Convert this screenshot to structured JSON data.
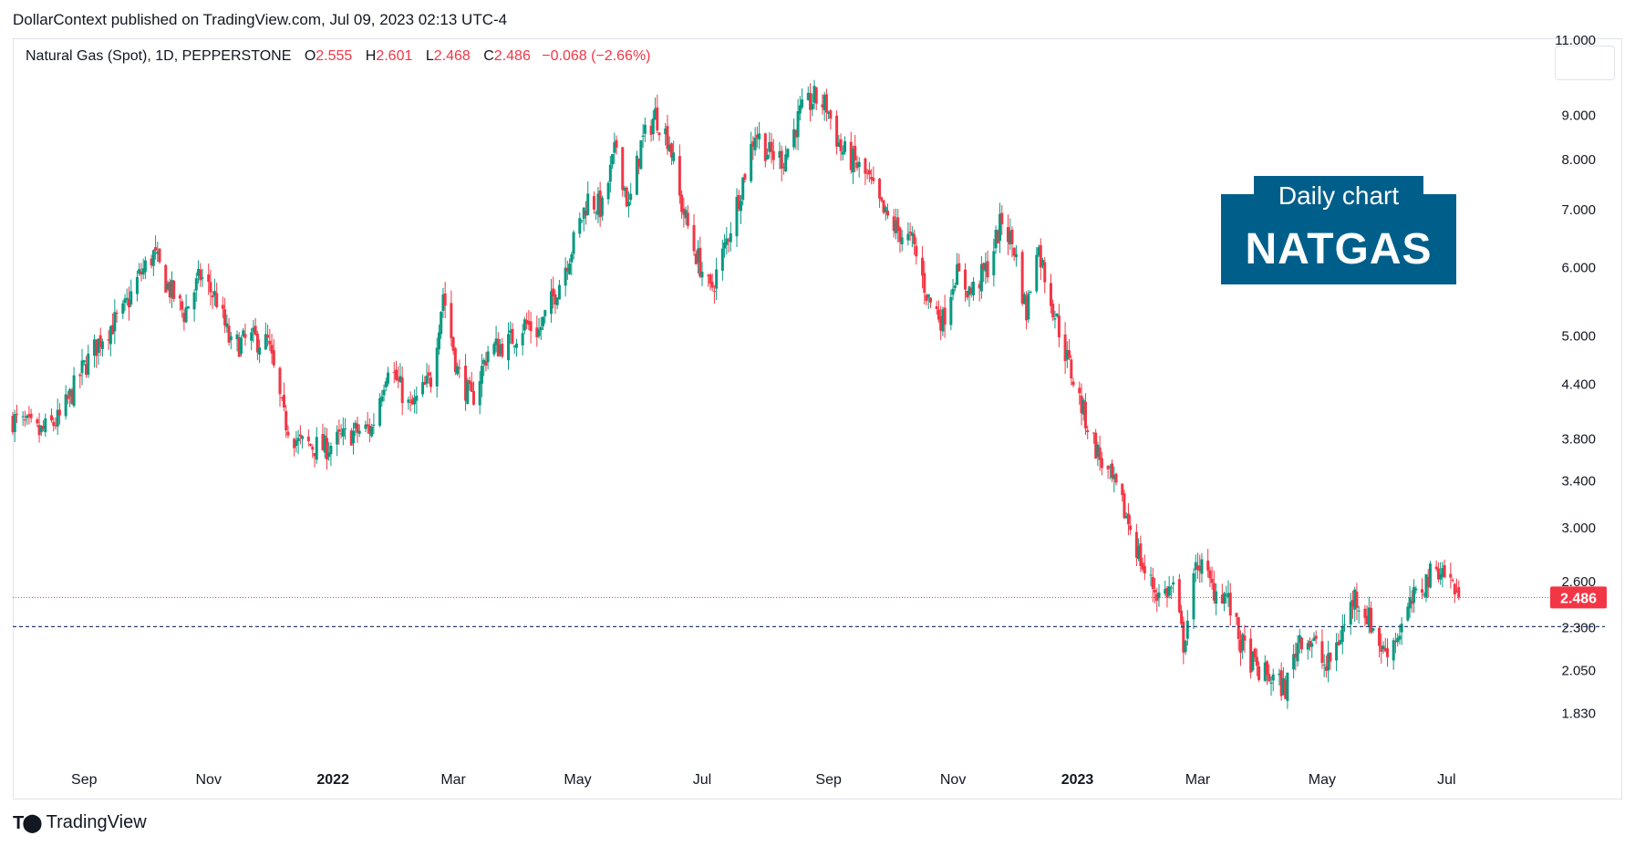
{
  "header": {
    "publisher_line": "DollarContext published on TradingView.com, Jul 09, 2023 02:13 UTC-4"
  },
  "legend": {
    "symbol": "Natural Gas (Spot), 1D, PEPPERSTONE",
    "open_label": "O",
    "open_value": "2.555",
    "high_label": "H",
    "high_value": "2.601",
    "low_label": "L",
    "low_value": "2.468",
    "close_label": "C",
    "close_value": "2.486",
    "change": "−0.068 (−2.66%)"
  },
  "badge": {
    "subtitle": "Daily chart",
    "title": "NATGAS"
  },
  "footer": {
    "brand": "TradingView",
    "logo_icon": "tradingview-logo-icon"
  },
  "colors": {
    "up": "#089981",
    "down": "#f23645",
    "badge": "#005f8a",
    "support_line": "#2a3f6e",
    "price_line": "#f23645"
  },
  "chart_data": {
    "type": "candlestick",
    "scale": "log",
    "ylim": [
      1.72,
      11.0
    ],
    "y_ticks": [
      "11.000",
      "9.000",
      "8.000",
      "7.000",
      "6.000",
      "5.000",
      "4.400",
      "3.800",
      "3.400",
      "3.000",
      "2.600",
      "2.300",
      "2.050",
      "1.830"
    ],
    "x_ticks": [
      {
        "label": "Sep",
        "date": "2021-09-01",
        "bold": false
      },
      {
        "label": "Nov",
        "date": "2021-11-01",
        "bold": false
      },
      {
        "label": "2022",
        "date": "2022-01-01",
        "bold": true
      },
      {
        "label": "Mar",
        "date": "2022-03-01",
        "bold": false
      },
      {
        "label": "May",
        "date": "2022-05-01",
        "bold": false
      },
      {
        "label": "Jul",
        "date": "2022-07-01",
        "bold": false
      },
      {
        "label": "Sep",
        "date": "2022-09-01",
        "bold": false
      },
      {
        "label": "Nov",
        "date": "2022-11-01",
        "bold": false
      },
      {
        "label": "2023",
        "date": "2023-01-01",
        "bold": true
      },
      {
        "label": "Mar",
        "date": "2023-03-01",
        "bold": false
      },
      {
        "label": "May",
        "date": "2023-05-01",
        "bold": false
      },
      {
        "label": "Jul",
        "date": "2023-07-01",
        "bold": false
      }
    ],
    "x_range": [
      "2021-07-28",
      "2023-08-15"
    ],
    "last_price": 2.486,
    "last_price_label": "2.486",
    "support_level": 2.3,
    "close_path": [
      [
        "2021-07-28",
        4.0
      ],
      [
        "2021-08-10",
        3.85
      ],
      [
        "2021-08-20",
        4.0
      ],
      [
        "2021-08-31",
        4.55
      ],
      [
        "2021-09-10",
        5.0
      ],
      [
        "2021-09-20",
        5.3
      ],
      [
        "2021-09-28",
        5.85
      ],
      [
        "2021-10-05",
        6.2
      ],
      [
        "2021-10-12",
        5.7
      ],
      [
        "2021-10-20",
        5.3
      ],
      [
        "2021-10-28",
        5.85
      ],
      [
        "2021-11-05",
        5.5
      ],
      [
        "2021-11-12",
        4.85
      ],
      [
        "2021-11-22",
        4.95
      ],
      [
        "2021-11-30",
        4.9
      ],
      [
        "2021-12-08",
        4.0
      ],
      [
        "2021-12-15",
        3.75
      ],
      [
        "2021-12-28",
        3.7
      ],
      [
        "2022-01-10",
        3.85
      ],
      [
        "2022-01-20",
        3.9
      ],
      [
        "2022-01-28",
        4.65
      ],
      [
        "2022-02-08",
        4.1
      ],
      [
        "2022-02-18",
        4.45
      ],
      [
        "2022-02-24",
        5.6
      ],
      [
        "2022-03-03",
        4.55
      ],
      [
        "2022-03-10",
        4.2
      ],
      [
        "2022-03-18",
        4.8
      ],
      [
        "2022-03-28",
        4.9
      ],
      [
        "2022-04-05",
        5.15
      ],
      [
        "2022-04-12",
        5.05
      ],
      [
        "2022-04-20",
        5.6
      ],
      [
        "2022-04-28",
        6.3
      ],
      [
        "2022-05-06",
        7.2
      ],
      [
        "2022-05-13",
        7.0
      ],
      [
        "2022-05-20",
        8.3
      ],
      [
        "2022-05-26",
        7.0
      ],
      [
        "2022-06-01",
        8.3
      ],
      [
        "2022-06-08",
        9.0
      ],
      [
        "2022-06-15",
        8.4
      ],
      [
        "2022-06-20",
        7.2
      ],
      [
        "2022-06-27",
        6.3
      ],
      [
        "2022-07-05",
        5.6
      ],
      [
        "2022-07-12",
        6.3
      ],
      [
        "2022-07-20",
        7.4
      ],
      [
        "2022-07-27",
        8.6
      ],
      [
        "2022-08-03",
        8.1
      ],
      [
        "2022-08-10",
        8.0
      ],
      [
        "2022-08-18",
        9.0
      ],
      [
        "2022-08-25",
        9.4
      ],
      [
        "2022-08-31",
        9.2
      ],
      [
        "2022-09-07",
        8.2
      ],
      [
        "2022-09-14",
        7.9
      ],
      [
        "2022-09-20",
        7.6
      ],
      [
        "2022-09-28",
        6.9
      ],
      [
        "2022-10-05",
        6.6
      ],
      [
        "2022-10-12",
        6.4
      ],
      [
        "2022-10-20",
        5.5
      ],
      [
        "2022-10-27",
        5.2
      ],
      [
        "2022-11-02",
        5.9
      ],
      [
        "2022-11-10",
        5.6
      ],
      [
        "2022-11-18",
        6.0
      ],
      [
        "2022-11-25",
        6.8
      ],
      [
        "2022-12-01",
        6.3
      ],
      [
        "2022-12-07",
        5.3
      ],
      [
        "2022-12-12",
        6.4
      ],
      [
        "2022-12-20",
        5.4
      ],
      [
        "2022-12-28",
        4.6
      ],
      [
        "2023-01-05",
        4.0
      ],
      [
        "2023-01-12",
        3.6
      ],
      [
        "2023-01-20",
        3.3
      ],
      [
        "2023-01-27",
        3.0
      ],
      [
        "2023-02-03",
        2.65
      ],
      [
        "2023-02-10",
        2.5
      ],
      [
        "2023-02-17",
        2.55
      ],
      [
        "2023-02-22",
        2.2
      ],
      [
        "2023-03-01",
        2.75
      ],
      [
        "2023-03-08",
        2.55
      ],
      [
        "2023-03-15",
        2.5
      ],
      [
        "2023-03-22",
        2.2
      ],
      [
        "2023-03-30",
        2.05
      ],
      [
        "2023-04-07",
        2.0
      ],
      [
        "2023-04-13",
        1.95
      ],
      [
        "2023-04-20",
        2.25
      ],
      [
        "2023-04-27",
        2.2
      ],
      [
        "2023-05-03",
        2.05
      ],
      [
        "2023-05-10",
        2.25
      ],
      [
        "2023-05-17",
        2.5
      ],
      [
        "2023-05-24",
        2.35
      ],
      [
        "2023-05-31",
        2.15
      ],
      [
        "2023-06-07",
        2.25
      ],
      [
        "2023-06-14",
        2.45
      ],
      [
        "2023-06-21",
        2.6
      ],
      [
        "2023-06-27",
        2.7
      ],
      [
        "2023-07-03",
        2.6
      ],
      [
        "2023-07-07",
        2.486
      ]
    ]
  }
}
